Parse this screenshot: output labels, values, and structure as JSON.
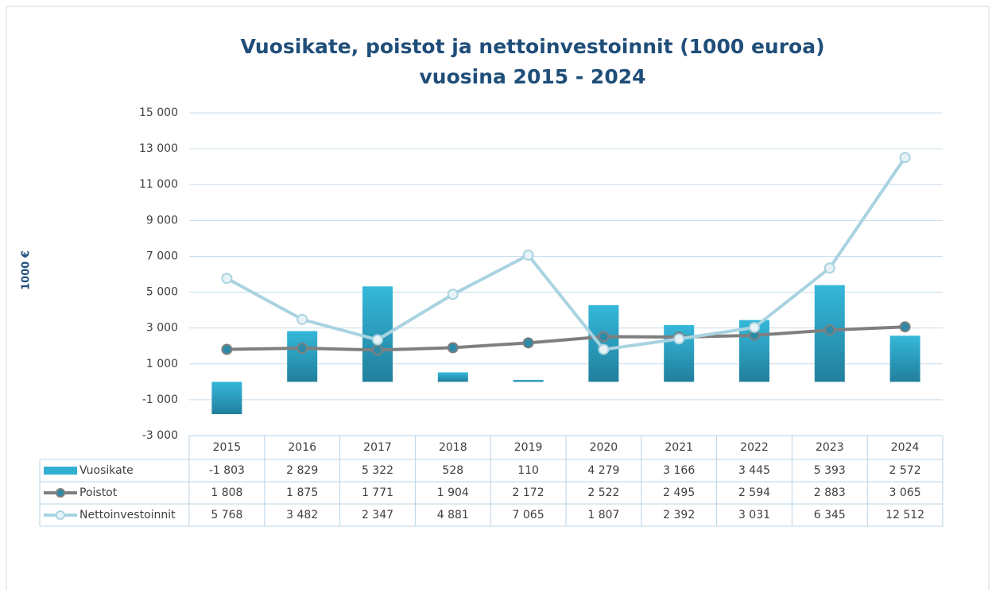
{
  "chart_data": {
    "type": "bar",
    "title": "Vuosikate, poistot ja nettoinvestoinnit  (1000 euroa)",
    "subtitle": "vuosina 2015 - 2024",
    "y_label": "1000 €",
    "categories": [
      "2015",
      "2016",
      "2017",
      "2018",
      "2019",
      "2020",
      "2021",
      "2022",
      "2023",
      "2024"
    ],
    "series": [
      {
        "name": "Vuosikate",
        "type": "bar",
        "color": "#31b0d3",
        "values": [
          -1803,
          2829,
          5322,
          528,
          110,
          4279,
          3166,
          3445,
          5393,
          2572
        ],
        "value_labels": [
          "-1 803",
          "2 829",
          "5 322",
          "528",
          "110",
          "4 279",
          "3 166",
          "3 445",
          "5 393",
          "2 572"
        ]
      },
      {
        "name": "Poistot",
        "type": "line",
        "color": "#7f7f7f",
        "values": [
          1808,
          1875,
          1771,
          1904,
          2172,
          2522,
          2495,
          2594,
          2883,
          3065
        ],
        "value_labels": [
          "1 808",
          "1 875",
          "1 771",
          "1 904",
          "2 172",
          "2 522",
          "2 495",
          "2 594",
          "2 883",
          "3 065"
        ]
      },
      {
        "name": "Nettoinvestoinnit",
        "type": "line",
        "color": "#a9d3e0",
        "values": [
          5768,
          3482,
          2347,
          4881,
          7065,
          1807,
          2392,
          3031,
          6345,
          12512
        ],
        "value_labels": [
          "5 768",
          "3 482",
          "2 347",
          "4 881",
          "7 065",
          "1 807",
          "2 392",
          "3 031",
          "6 345",
          "12 512"
        ]
      }
    ],
    "ylim": [
      -3000,
      15000
    ],
    "yticks": [
      {
        "value": -3000,
        "label": "-3 000"
      },
      {
        "value": -1000,
        "label": "-1 000"
      },
      {
        "value": 1000,
        "label": "1 000"
      },
      {
        "value": 3000,
        "label": "3 000"
      },
      {
        "value": 5000,
        "label": "5 000"
      },
      {
        "value": 7000,
        "label": "7 000"
      },
      {
        "value": 9000,
        "label": "9 000"
      },
      {
        "value": 11000,
        "label": "11 000"
      },
      {
        "value": 13000,
        "label": "13 000"
      },
      {
        "value": 15000,
        "label": "15 000"
      }
    ],
    "grid": true
  }
}
